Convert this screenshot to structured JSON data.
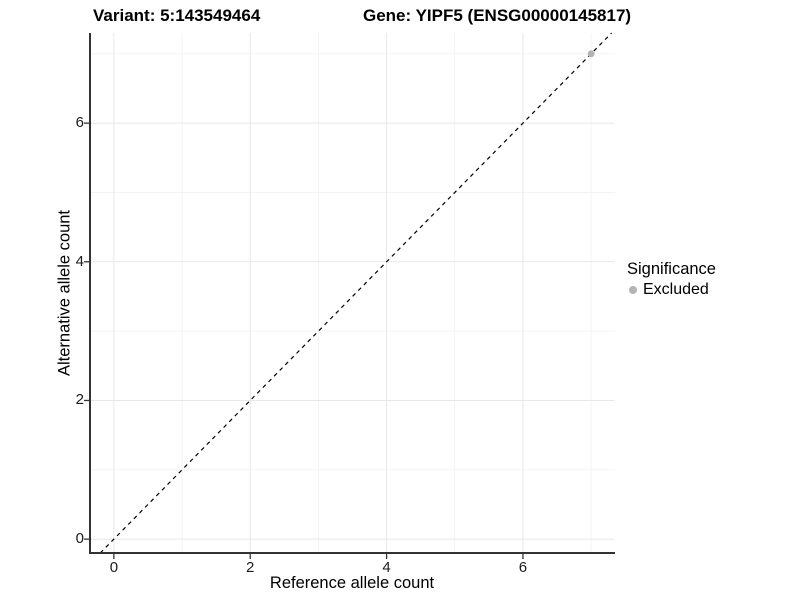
{
  "titles": {
    "variant": "Variant: 5:143549464",
    "gene": "Gene: YIPF5 (ENSG00000145817)"
  },
  "chart_data": {
    "type": "scatter",
    "xlabel": "Reference allele count",
    "ylabel": "Alternative allele count",
    "xlim": [
      -0.35,
      7.35
    ],
    "ylim": [
      -0.2,
      7.3
    ],
    "xticks": [
      0,
      2,
      4,
      6
    ],
    "yticks": [
      0,
      2,
      4,
      6
    ],
    "minor_xticks": [
      1,
      3,
      5,
      7
    ],
    "minor_yticks": [
      1,
      3,
      5,
      7
    ],
    "grid": "major+minor",
    "reference_line": {
      "kind": "identity y=x",
      "style": "dashed",
      "color": "#000000"
    },
    "series": [
      {
        "name": "Excluded",
        "color": "#b4b4b4",
        "points": [
          {
            "x": 7,
            "y": 7
          }
        ]
      }
    ],
    "legend_position": "right"
  },
  "legend": {
    "title": "Significance",
    "items": [
      {
        "label": "Excluded",
        "color": "#b4b4b4"
      }
    ]
  },
  "colors": {
    "background": "#ffffff",
    "axis_line": "#333333",
    "major_grid": "#e8e8e8",
    "minor_grid": "#f3f3f3",
    "tick_label": "#1a1a1a",
    "point": "#b4b4b4"
  }
}
